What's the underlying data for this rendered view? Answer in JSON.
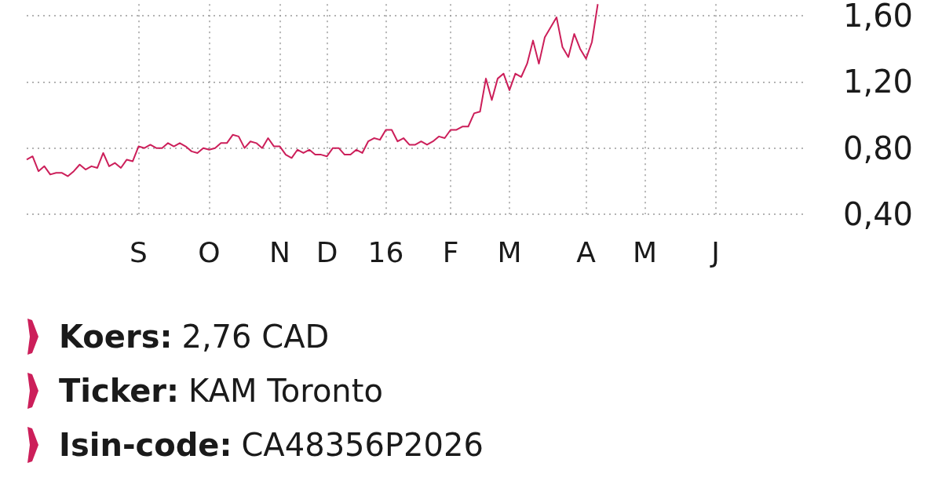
{
  "chart_data": {
    "type": "line",
    "categories": [
      null,
      null,
      null,
      null,
      null,
      null,
      null,
      null,
      null,
      null,
      null,
      null,
      null,
      null,
      null,
      null,
      null,
      null,
      null,
      "S",
      null,
      null,
      null,
      null,
      null,
      null,
      null,
      null,
      null,
      null,
      null,
      "O",
      null,
      null,
      null,
      null,
      null,
      null,
      null,
      null,
      null,
      null,
      null,
      "N",
      null,
      null,
      null,
      null,
      null,
      null,
      null,
      "D",
      null,
      null,
      null,
      null,
      null,
      null,
      null,
      null,
      null,
      "16",
      null,
      null,
      null,
      null,
      null,
      null,
      null,
      null,
      null,
      null,
      "F",
      null,
      null,
      null,
      null,
      null,
      null,
      null,
      null,
      null,
      "M",
      null,
      null,
      null,
      null,
      null,
      null,
      null,
      null,
      null,
      null,
      null,
      null,
      "A",
      null,
      null,
      null,
      null,
      null,
      null,
      null,
      null,
      null,
      "M",
      null,
      null,
      null,
      null,
      null,
      null,
      null,
      null,
      null,
      null,
      null,
      "J",
      null,
      null,
      null,
      null,
      null,
      null,
      null,
      null,
      null,
      null,
      null,
      null,
      null,
      null,
      null
    ],
    "series": [
      {
        "color": "#cc1f5a",
        "values": [
          0.73,
          0.75,
          0.66,
          0.69,
          0.64,
          0.65,
          0.65,
          0.63,
          0.66,
          0.7,
          0.67,
          0.69,
          0.68,
          0.77,
          0.69,
          0.71,
          0.68,
          0.73,
          0.72,
          0.81,
          0.8,
          0.82,
          0.8,
          0.8,
          0.83,
          0.81,
          0.83,
          0.81,
          0.78,
          0.77,
          0.8,
          0.79,
          0.8,
          0.83,
          0.83,
          0.88,
          0.87,
          0.8,
          0.84,
          0.83,
          0.8,
          0.86,
          0.81,
          0.81,
          0.76,
          0.74,
          0.79,
          0.77,
          0.79,
          0.76,
          0.76,
          0.75,
          0.8,
          0.8,
          0.76,
          0.76,
          0.79,
          0.77,
          0.84,
          0.86,
          0.85,
          0.91,
          0.91,
          0.84,
          0.86,
          0.82,
          0.82,
          0.84,
          0.82,
          0.84,
          0.87,
          0.86,
          0.91,
          0.91,
          0.93,
          0.93,
          1.01,
          1.02,
          1.22,
          1.09,
          1.22,
          1.25,
          1.15,
          1.25,
          1.23,
          1.31,
          1.45,
          1.31,
          1.47,
          1.53,
          1.59,
          1.41,
          1.35,
          1.49,
          1.4,
          1.34,
          1.44,
          1.67,
          null,
          null,
          null,
          null,
          null,
          null,
          null,
          null,
          null,
          null,
          null,
          null,
          null,
          null,
          null,
          null,
          null,
          null,
          null,
          null,
          null,
          null,
          null,
          null,
          null,
          null,
          null,
          null,
          null,
          null,
          null,
          null,
          null,
          null,
          null
        ]
      }
    ],
    "ylim": [
      0.4,
      1.67
    ],
    "yticks": [
      {
        "value": 0.4,
        "label": "0,40"
      },
      {
        "value": 0.8,
        "label": "0,80"
      },
      {
        "value": 1.2,
        "label": "1,20"
      },
      {
        "value": 1.6,
        "label": "1,60"
      }
    ],
    "grid": true,
    "marker": "none",
    "annotations": [
      "Koers: 2,76 CAD",
      "Ticker: KAM Toronto",
      "Isin-code: CA48356P2026"
    ]
  }
}
